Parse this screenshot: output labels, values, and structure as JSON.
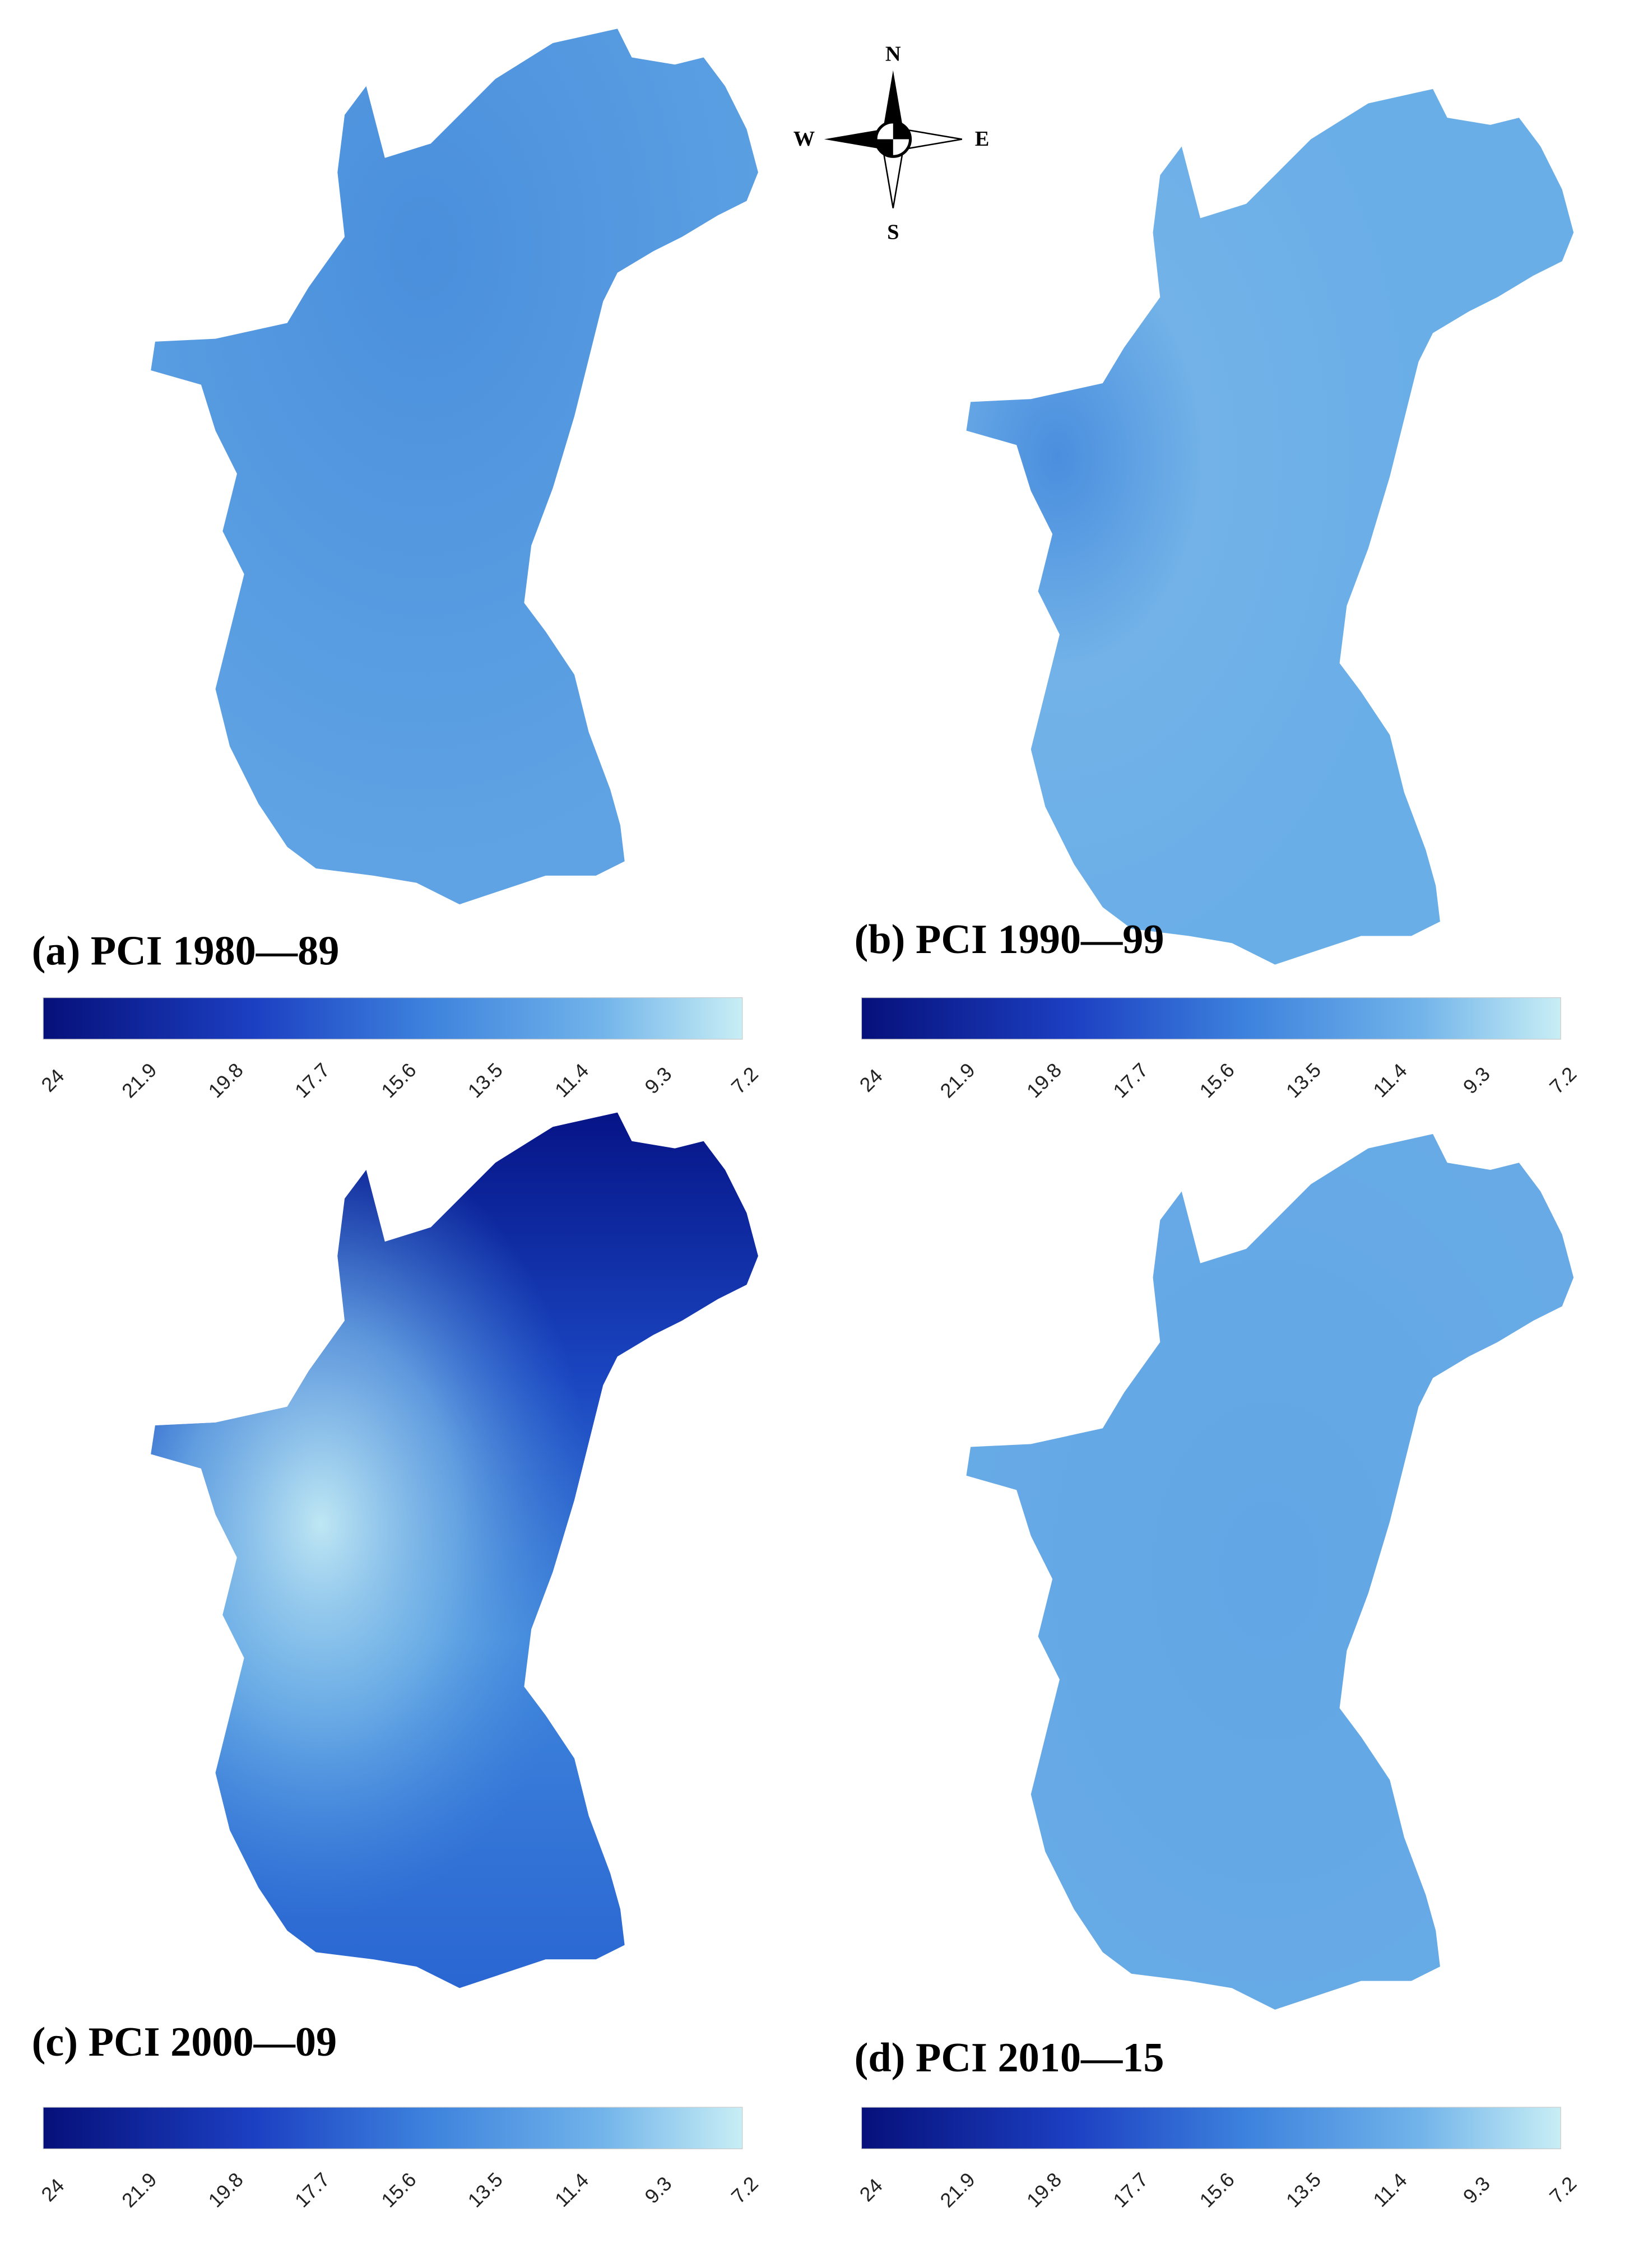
{
  "compass": {
    "north": "N",
    "south": "S",
    "east": "E",
    "west": "W"
  },
  "panels": [
    {
      "title": "(a) PCI 1980—89",
      "colorbar_ticks": [
        "24",
        "21.9",
        "19.8",
        "17.7",
        "15.6",
        "13.5",
        "11.4",
        "9.3",
        "7.2"
      ]
    },
    {
      "title": "(b) PCI 1990—99",
      "colorbar_ticks": [
        "24",
        "21.9",
        "19.8",
        "17.7",
        "15.6",
        "13.5",
        "11.4",
        "9.3",
        "7.2"
      ]
    },
    {
      "title": "(c) PCI 2000—09",
      "colorbar_ticks": [
        "24",
        "21.9",
        "19.8",
        "17.7",
        "15.6",
        "13.5",
        "11.4",
        "9.3",
        "7.2"
      ]
    },
    {
      "title": "(d) PCI 2010—15",
      "colorbar_ticks": [
        "24",
        "21.9",
        "19.8",
        "17.7",
        "15.6",
        "13.5",
        "11.4",
        "9.3",
        "7.2"
      ]
    }
  ]
}
